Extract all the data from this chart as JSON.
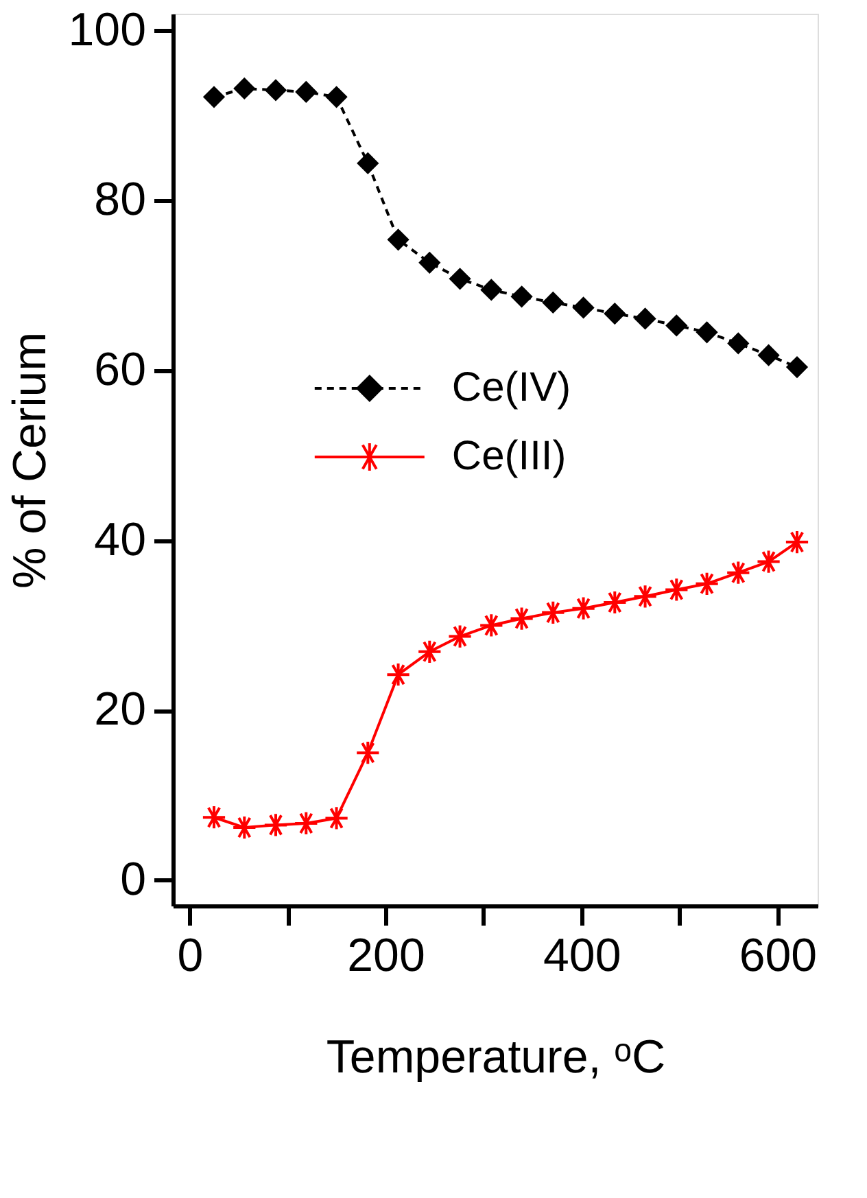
{
  "chart_data": {
    "type": "line",
    "xlabel": "Temperature, ᵒC",
    "ylabel": "% of Cerium",
    "x": [
      25,
      56,
      88,
      119,
      150,
      182,
      213,
      245,
      276,
      308,
      339,
      371,
      402,
      434,
      465,
      497,
      528,
      560,
      591,
      620
    ],
    "series": [
      {
        "name": "Ce(IV)",
        "color": "#000000",
        "marker": "diamond",
        "line_style": "dashed",
        "values": [
          92.2,
          93.2,
          93.0,
          92.8,
          92.2,
          84.4,
          75.4,
          72.7,
          70.8,
          69.5,
          68.7,
          68.0,
          67.4,
          66.7,
          66.1,
          65.3,
          64.5,
          63.2,
          61.8,
          60.4
        ]
      },
      {
        "name": "Ce(III)",
        "color": "#ff0000",
        "marker": "cross",
        "line_style": "solid",
        "values": [
          7.4,
          6.2,
          6.5,
          6.7,
          7.3,
          15.0,
          24.2,
          26.9,
          28.7,
          30.0,
          30.8,
          31.5,
          32.0,
          32.7,
          33.4,
          34.2,
          34.9,
          36.2,
          37.5,
          39.8
        ]
      }
    ],
    "xlim": [
      -17,
      641
    ],
    "ylim": [
      -3,
      102
    ],
    "xticks": [
      0,
      {
        "value": 100,
        "label": null
      },
      200,
      {
        "value": 300,
        "label": null
      },
      400,
      {
        "value": 500,
        "label": null
      },
      600
    ],
    "yticks": [
      0,
      20,
      40,
      60,
      80,
      100
    ],
    "grid": false,
    "legend": "center"
  }
}
